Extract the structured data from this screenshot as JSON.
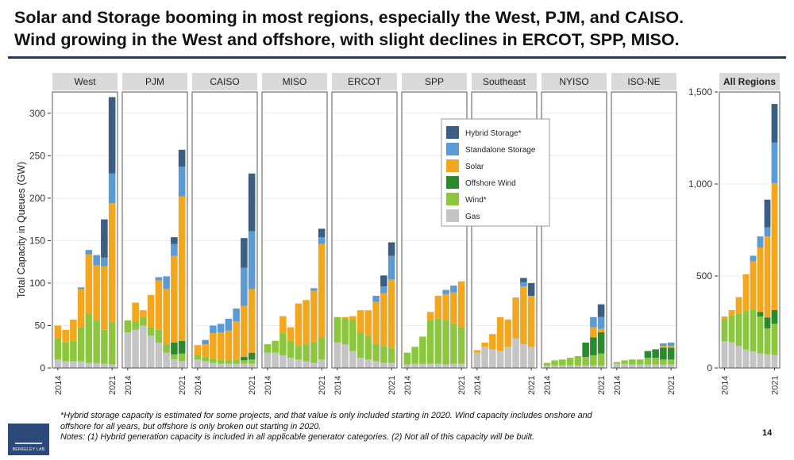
{
  "title_lines": [
    "Solar and Storage booming in most regions, especially the West, PJM, and CAISO.",
    "Wind growing in the West and offshore, with slight declines in ERCOT, SPP, MISO."
  ],
  "notes": [
    "*Hybrid storage capacity is estimated for some projects, and that value is only included starting in 2020. Wind capacity includes onshore and",
    "offshore for all years, but offshore is only broken out starting in 2020.",
    "Notes: (1) Hybrid generation capacity is included in all applicable generator categories. (2) Not all of this capacity will be built."
  ],
  "page_number": "14",
  "logo_text": "BERKELEY LAB",
  "chart_data": [
    {
      "type": "bar",
      "stacked": true,
      "facets": [
        "West",
        "PJM",
        "CAISO",
        "MISO",
        "ERCOT",
        "SPP",
        "Southeast",
        "NYISO",
        "ISO-NE"
      ],
      "ylabel": "Total Capacity in Queues (GW)",
      "ylim": [
        0,
        325
      ],
      "y_ticks": [
        "0",
        "50",
        "100",
        "150",
        "200",
        "250",
        "300"
      ],
      "y_tick_values": [
        0,
        50,
        100,
        150,
        200,
        250,
        300
      ],
      "x_tick_labels": [
        "2014",
        "2021"
      ],
      "years": [
        2014,
        2015,
        2016,
        2017,
        2018,
        2019,
        2020,
        2021
      ],
      "series_order": [
        "Gas",
        "Wind*",
        "Offshore Wind",
        "Solar",
        "Standalone Storage",
        "Hybrid Storage*"
      ],
      "grid": true,
      "legend_placement": "inside, centered between SPP and Southeast panels",
      "values": {
        "West": {
          "Gas": [
            10,
            8,
            8,
            8,
            6,
            6,
            5,
            4
          ],
          "Wind*": [
            25,
            22,
            24,
            40,
            58,
            50,
            40,
            50
          ],
          "Offshore Wind": [
            0,
            0,
            0,
            0,
            0,
            0,
            0,
            0
          ],
          "Solar": [
            15,
            15,
            25,
            45,
            70,
            65,
            75,
            140
          ],
          "Standalone Storage": [
            0,
            0,
            0,
            2,
            5,
            12,
            10,
            35
          ],
          "Hybrid Storage*": [
            0,
            0,
            0,
            0,
            0,
            0,
            45,
            90
          ]
        },
        "PJM": {
          "Gas": [
            42,
            45,
            50,
            38,
            30,
            18,
            10,
            8
          ],
          "Wind*": [
            14,
            10,
            10,
            10,
            15,
            10,
            6,
            9
          ],
          "Offshore Wind": [
            0,
            0,
            0,
            0,
            0,
            0,
            14,
            15
          ],
          "Solar": [
            0,
            22,
            8,
            38,
            58,
            65,
            102,
            170
          ],
          "Standalone Storage": [
            0,
            0,
            0,
            0,
            4,
            15,
            14,
            35
          ],
          "Hybrid Storage*": [
            0,
            0,
            0,
            0,
            0,
            0,
            8,
            20
          ]
        },
        "CAISO": {
          "Gas": [
            10,
            8,
            6,
            5,
            5,
            5,
            5,
            5
          ],
          "Wind*": [
            5,
            5,
            5,
            5,
            4,
            5,
            4,
            5
          ],
          "Offshore Wind": [
            0,
            0,
            0,
            0,
            0,
            0,
            4,
            8
          ],
          "Solar": [
            12,
            15,
            30,
            32,
            35,
            45,
            60,
            75
          ],
          "Standalone Storage": [
            0,
            5,
            9,
            10,
            14,
            15,
            45,
            68
          ],
          "Hybrid Storage*": [
            0,
            0,
            0,
            0,
            0,
            0,
            35,
            68
          ]
        },
        "MISO": {
          "Gas": [
            18,
            18,
            15,
            12,
            10,
            8,
            6,
            10
          ],
          "Wind*": [
            10,
            14,
            26,
            20,
            16,
            20,
            25,
            26
          ],
          "Offshore Wind": [
            0,
            0,
            0,
            0,
            0,
            0,
            0,
            0
          ],
          "Solar": [
            0,
            0,
            20,
            16,
            50,
            52,
            60,
            110
          ],
          "Standalone Storage": [
            0,
            0,
            0,
            0,
            0,
            0,
            3,
            8
          ],
          "Hybrid Storage*": [
            0,
            0,
            0,
            0,
            0,
            0,
            0,
            10
          ]
        },
        "ERCOT": {
          "Gas": [
            30,
            28,
            20,
            12,
            10,
            8,
            6,
            6
          ],
          "Wind*": [
            30,
            30,
            37,
            30,
            28,
            20,
            20,
            18
          ],
          "Offshore Wind": [
            0,
            0,
            0,
            0,
            0,
            0,
            0,
            0
          ],
          "Solar": [
            0,
            2,
            4,
            26,
            30,
            50,
            62,
            80
          ],
          "Standalone Storage": [
            0,
            0,
            0,
            0,
            0,
            7,
            8,
            28
          ],
          "Hybrid Storage*": [
            0,
            0,
            0,
            0,
            0,
            0,
            13,
            16
          ]
        },
        "SPP": {
          "Gas": [
            4,
            5,
            5,
            5,
            5,
            4,
            5,
            5
          ],
          "Wind*": [
            14,
            20,
            32,
            51,
            53,
            52,
            47,
            43
          ],
          "Offshore Wind": [
            0,
            0,
            0,
            0,
            0,
            0,
            0,
            0
          ],
          "Solar": [
            0,
            0,
            0,
            10,
            27,
            31,
            37,
            54
          ],
          "Standalone Storage": [
            0,
            0,
            0,
            0,
            0,
            5,
            8,
            0
          ],
          "Hybrid Storage*": [
            0,
            0,
            0,
            0,
            0,
            0,
            0,
            0
          ]
        },
        "Southeast": {
          "Gas": [
            18,
            25,
            22,
            20,
            25,
            35,
            28,
            25
          ],
          "Wind*": [
            0,
            0,
            0,
            0,
            0,
            0,
            0,
            0
          ],
          "Offshore Wind": [
            0,
            0,
            0,
            0,
            0,
            0,
            0,
            0
          ],
          "Solar": [
            3,
            5,
            18,
            40,
            32,
            48,
            68,
            60
          ],
          "Standalone Storage": [
            0,
            0,
            0,
            0,
            0,
            0,
            5,
            0
          ],
          "Hybrid Storage*": [
            0,
            0,
            0,
            0,
            0,
            0,
            5,
            15
          ]
        },
        "NYISO": {
          "Gas": [
            3,
            3,
            3,
            3,
            3,
            3,
            3,
            3
          ],
          "Wind*": [
            3,
            6,
            7,
            9,
            11,
            10,
            12,
            14
          ],
          "Offshore Wind": [
            0,
            0,
            0,
            0,
            0,
            17,
            21,
            25
          ],
          "Solar": [
            0,
            0,
            0,
            0,
            0,
            0,
            12,
            4
          ],
          "Standalone Storage": [
            0,
            0,
            0,
            0,
            0,
            0,
            12,
            14
          ],
          "Hybrid Storage*": [
            0,
            0,
            0,
            0,
            0,
            0,
            0,
            15
          ]
        },
        "ISO-NE": {
          "Gas": [
            5,
            5,
            4,
            4,
            4,
            4,
            4,
            4
          ],
          "Wind*": [
            2,
            4,
            6,
            6,
            8,
            8,
            6,
            6
          ],
          "Offshore Wind": [
            0,
            0,
            0,
            0,
            8,
            10,
            14,
            14
          ],
          "Solar": [
            0,
            0,
            0,
            0,
            0,
            0,
            2,
            2
          ],
          "Standalone Storage": [
            0,
            0,
            0,
            0,
            0,
            0,
            3,
            4
          ],
          "Hybrid Storage*": [
            0,
            0,
            0,
            0,
            0,
            0,
            0,
            0
          ]
        }
      }
    },
    {
      "type": "bar",
      "stacked": true,
      "facets": [
        "All Regions"
      ],
      "ylim": [
        0,
        1500
      ],
      "y_ticks": [
        "0",
        "500",
        "1,000",
        "1,500"
      ],
      "y_tick_values": [
        0,
        500,
        1000,
        1500
      ],
      "x_tick_labels": [
        "2014",
        "2021"
      ],
      "years": [
        2014,
        2015,
        2016,
        2017,
        2018,
        2019,
        2020,
        2021
      ],
      "series_order": [
        "Gas",
        "Wind*",
        "Offshore Wind",
        "Solar",
        "Standalone Storage",
        "Hybrid Storage*"
      ],
      "values": {
        "All Regions": {
          "Gas": [
            145,
            140,
            120,
            100,
            90,
            80,
            75,
            70
          ],
          "Wind*": [
            120,
            145,
            175,
            210,
            230,
            200,
            140,
            170
          ],
          "Offshore Wind": [
            0,
            0,
            0,
            0,
            0,
            25,
            60,
            75
          ],
          "Solar": [
            15,
            30,
            90,
            200,
            260,
            350,
            440,
            690
          ],
          "Standalone Storage": [
            0,
            0,
            0,
            0,
            30,
            60,
            50,
            220
          ],
          "Hybrid Storage*": [
            0,
            0,
            0,
            0,
            0,
            0,
            150,
            210
          ]
        }
      }
    }
  ],
  "legend": {
    "items": [
      "Hybrid Storage*",
      "Standalone Storage",
      "Solar",
      "Offshore Wind",
      "Wind*",
      "Gas"
    ],
    "colors": {
      "Hybrid Storage*": "#3a5f83",
      "Standalone Storage": "#5b9bd5",
      "Solar": "#f3a71f",
      "Offshore Wind": "#2a8a2e",
      "Wind*": "#8cc63f",
      "Gas": "#c4c4c4"
    }
  },
  "colors": {
    "strip": "#d9d9d9",
    "title_rule": "#1f3a6e",
    "grid": "#ececec",
    "panel_border": "#555555"
  }
}
